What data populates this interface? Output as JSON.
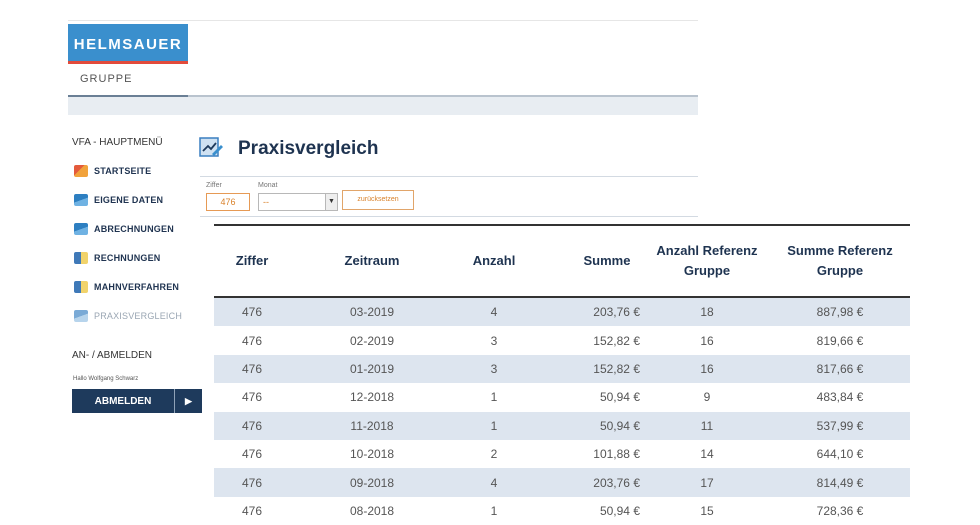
{
  "logo": {
    "name": "HELMSAUER",
    "subtitle": "GRUPPE"
  },
  "sidebar": {
    "menu_title": "VFA - HAUPTMENÜ",
    "items": [
      {
        "label": "STARTSEITE",
        "icon": "home-icon"
      },
      {
        "label": "EIGENE DATEN",
        "icon": "book-icon"
      },
      {
        "label": "ABRECHNUNGEN",
        "icon": "book-icon"
      },
      {
        "label": "RECHNUNGEN",
        "icon": "person-icon"
      },
      {
        "label": "MAHNVERFAHREN",
        "icon": "person-icon"
      },
      {
        "label": "PRAXISVERGLEICH",
        "icon": "book-icon"
      }
    ],
    "auth_title": "AN- / ABMELDEN",
    "greeting": "Hallo Wolfgang Schwarz",
    "logout_label": "ABMELDEN"
  },
  "main": {
    "title": "Praxisvergleich",
    "filter": {
      "ziffer_label": "Ziffer",
      "ziffer_value": "476",
      "monat_label": "Monat",
      "monat_value": "--",
      "reset_label": "zurücksetzen"
    },
    "table": {
      "headers": [
        "Ziffer",
        "Zeitraum",
        "Anzahl",
        "Summe",
        "Anzahl Referenz Gruppe",
        "Summe Referenz Gruppe"
      ],
      "rows": [
        [
          "476",
          "03-2019",
          "4",
          "203,76 €",
          "18",
          "887,98 €"
        ],
        [
          "476",
          "02-2019",
          "3",
          "152,82 €",
          "16",
          "819,66 €"
        ],
        [
          "476",
          "01-2019",
          "3",
          "152,82 €",
          "16",
          "817,66 €"
        ],
        [
          "476",
          "12-2018",
          "1",
          "50,94 €",
          "9",
          "483,84 €"
        ],
        [
          "476",
          "11-2018",
          "1",
          "50,94 €",
          "11",
          "537,99 €"
        ],
        [
          "476",
          "10-2018",
          "2",
          "101,88 €",
          "14",
          "644,10 €"
        ],
        [
          "476",
          "09-2018",
          "4",
          "203,76 €",
          "17",
          "814,49 €"
        ],
        [
          "476",
          "08-2018",
          "1",
          "50,94 €",
          "15",
          "728,36 €"
        ]
      ]
    }
  },
  "colors": {
    "brand_blue": "#3a8fcd",
    "navy": "#1e3a5c",
    "accent_orange": "#d9822b",
    "row_alt": "#dde5ef"
  }
}
